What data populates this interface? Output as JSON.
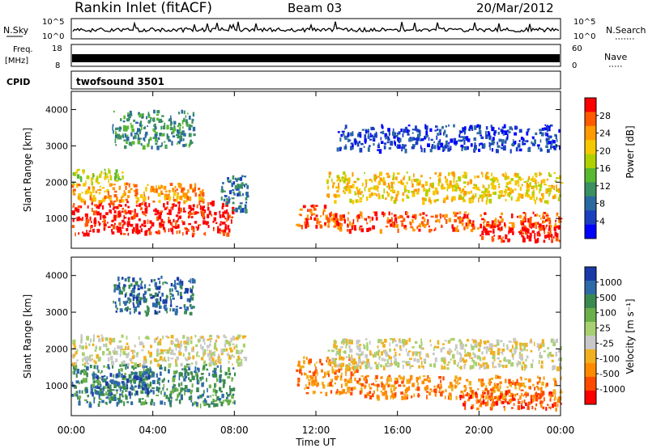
{
  "header": {
    "station": "Rankin Inlet (fitACF)",
    "beam": "Beam 03",
    "date": "20/Mar/2012"
  },
  "noise_panel": {
    "left_label": "N.Sky",
    "right_label": "N.Search",
    "left_ticks": [
      "10^5",
      "10^0"
    ],
    "right_ticks": [
      "10^5",
      "10^0"
    ]
  },
  "freq_panel": {
    "left_label_top": "Freq.",
    "left_label_bottom": "[MHz]",
    "right_label": "Nave",
    "left_ticks": [
      "18",
      "8"
    ],
    "right_ticks": [
      "60",
      "0"
    ]
  },
  "cpid_panel": {
    "label": "CPID",
    "program": "twofsound 3501"
  },
  "time_axis": {
    "label": "Time UT",
    "ticks": [
      "00:00",
      "04:00",
      "08:00",
      "12:00",
      "16:00",
      "20:00",
      "00:00"
    ]
  },
  "chart_data": [
    {
      "type": "heatmap",
      "quantity": "power",
      "ylabel": "Slant Range [km]",
      "yticks": [
        1000,
        2000,
        3000,
        4000
      ],
      "ylim": [
        180,
        4500
      ],
      "xlim_hours": [
        0,
        24
      ],
      "colorbar": {
        "label": "Power [dB]",
        "ticks": [
          "28",
          "24",
          "20",
          "16",
          "12",
          "8",
          "4"
        ],
        "colors": [
          "#ff0000",
          "#ff5a00",
          "#ff9a00",
          "#f5c800",
          "#b0d000",
          "#58b830",
          "#3a9060",
          "#2a6aa0",
          "#1a40c0",
          "#0000ff"
        ]
      },
      "regions": [
        {
          "t0": 0.0,
          "t1": 7.9,
          "r0": 600,
          "r1": 1500,
          "c": 0
        },
        {
          "t0": 0.0,
          "t1": 6.5,
          "r0": 1500,
          "r1": 2000,
          "c": 2
        },
        {
          "t0": 0.0,
          "t1": 2.5,
          "r0": 2000,
          "r1": 2400,
          "c": 4
        },
        {
          "t0": 7.3,
          "t1": 8.6,
          "r0": 1200,
          "r1": 2200,
          "c": 7
        },
        {
          "t0": 11.0,
          "t1": 12.5,
          "r0": 800,
          "r1": 1400,
          "c": 1
        },
        {
          "t0": 12.5,
          "t1": 24.0,
          "r0": 1500,
          "r1": 2300,
          "c": 3
        },
        {
          "t0": 12.5,
          "t1": 24.0,
          "r0": 700,
          "r1": 1200,
          "c": 1
        },
        {
          "t0": 20.0,
          "t1": 24.0,
          "r0": 400,
          "r1": 900,
          "c": 0
        },
        {
          "t0": 2.0,
          "t1": 6.0,
          "r0": 3000,
          "r1": 4000,
          "c": 6
        },
        {
          "t0": 13.0,
          "t1": 24.0,
          "r0": 2900,
          "r1": 3600,
          "c": 8
        }
      ]
    },
    {
      "type": "heatmap",
      "quantity": "velocity",
      "ylabel": "Slant Range [km]",
      "yticks": [
        1000,
        2000,
        3000,
        4000
      ],
      "ylim": [
        180,
        4500
      ],
      "xlim_hours": [
        0,
        24
      ],
      "colorbar": {
        "label": "Velocity [m s⁻¹]",
        "ticks": [
          "1000",
          "500",
          "100",
          "25",
          "-25",
          "-100",
          "-500",
          "-1000"
        ],
        "colors": [
          "#1a3aa8",
          "#2e6aa8",
          "#3a8a50",
          "#6ab04a",
          "#a8d070",
          "#c8c8c8",
          "#f0b020",
          "#ff8a00",
          "#ff4a00",
          "#ff0000"
        ]
      },
      "regions": [
        {
          "t0": 0.0,
          "t1": 8.0,
          "r0": 500,
          "r1": 1600,
          "c": 2
        },
        {
          "t0": 1.0,
          "t1": 4.0,
          "r0": 800,
          "r1": 1400,
          "c": 1
        },
        {
          "t0": 0.0,
          "t1": 8.5,
          "r0": 1600,
          "r1": 2400,
          "c": 5
        },
        {
          "t0": 11.0,
          "t1": 14.0,
          "r0": 800,
          "r1": 1800,
          "c": 7
        },
        {
          "t0": 12.5,
          "t1": 24.0,
          "r0": 1500,
          "r1": 2300,
          "c": 5
        },
        {
          "t0": 14.0,
          "t1": 24.0,
          "r0": 700,
          "r1": 1300,
          "c": 7
        },
        {
          "t0": 19.0,
          "t1": 24.0,
          "r0": 400,
          "r1": 900,
          "c": 8
        },
        {
          "t0": 2.0,
          "t1": 6.0,
          "r0": 3000,
          "r1": 4000,
          "c": 1
        }
      ]
    }
  ]
}
